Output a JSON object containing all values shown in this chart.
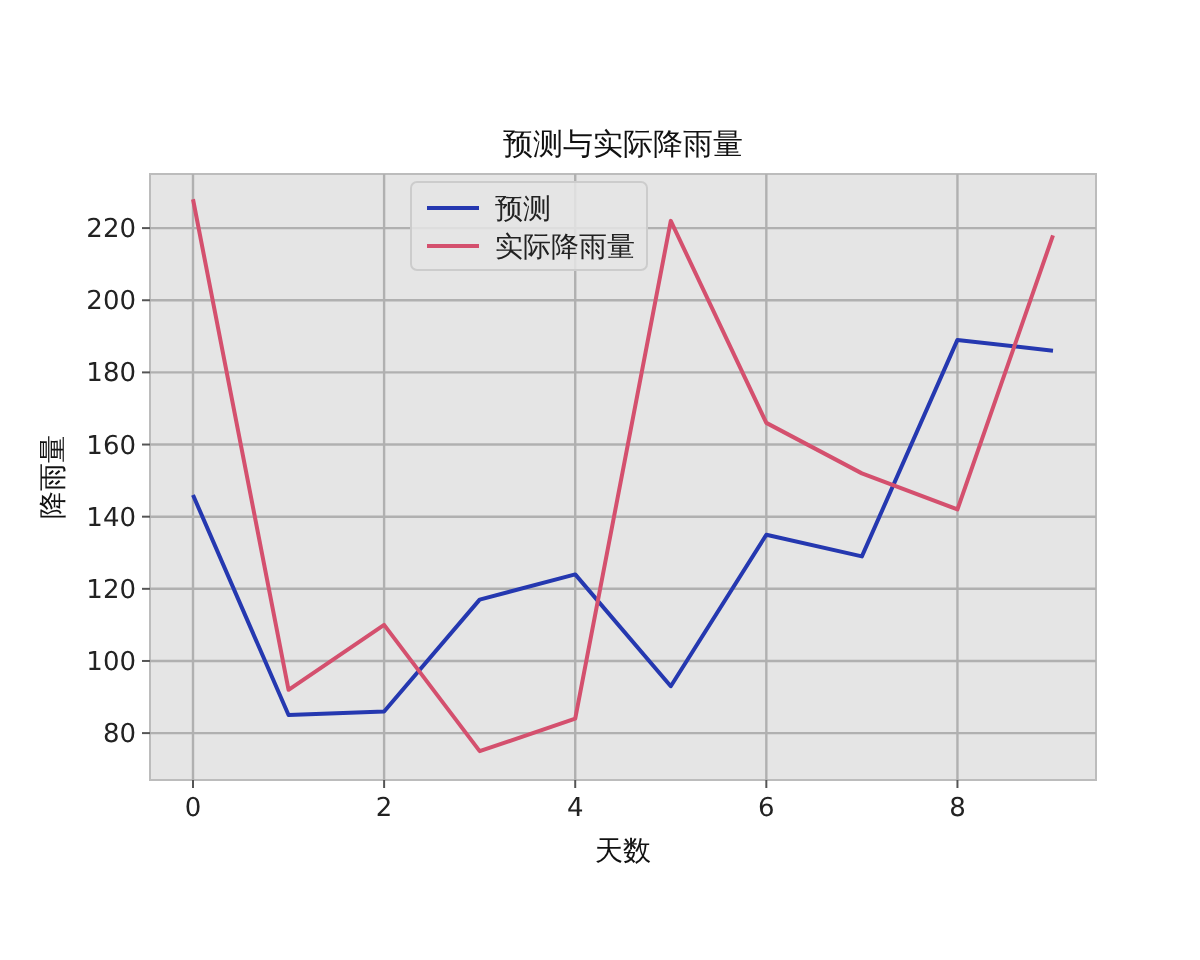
{
  "chart_data": {
    "type": "line",
    "title": "预测与实际降雨量",
    "xlabel": "天数",
    "ylabel": "降雨量",
    "x": [
      0,
      1,
      2,
      3,
      4,
      5,
      6,
      7,
      8,
      9
    ],
    "series": [
      {
        "name": "预测",
        "color": "#2538b0",
        "values": [
          146,
          85,
          86,
          117,
          124,
          93,
          135,
          129,
          189,
          186
        ]
      },
      {
        "name": "实际降雨量",
        "color": "#d4506e",
        "values": [
          228,
          92,
          110,
          75,
          84,
          222,
          166,
          152,
          142,
          218
        ]
      }
    ],
    "xlim": [
      -0.45,
      9.45
    ],
    "xticks": [
      0,
      2,
      4,
      6,
      8
    ],
    "ylim": [
      67,
      235
    ],
    "yticks": [
      80,
      100,
      120,
      140,
      160,
      180,
      200,
      220
    ],
    "grid": true,
    "legend": "top",
    "line_style": "solid",
    "marker": "none"
  }
}
